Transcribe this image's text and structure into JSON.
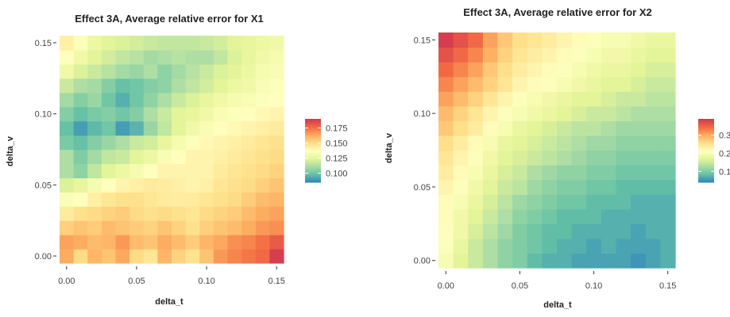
{
  "chart_data": [
    {
      "type": "heatmap",
      "title": "Effect 3A, Average relative error for X1",
      "xlabel": "delta_t",
      "ylabel": "delta_v",
      "x_ticks": [
        "0.00",
        "0.05",
        "0.10",
        "0.15"
      ],
      "y_ticks": [
        "0.00",
        "0.05",
        "0.10",
        "0.15"
      ],
      "x_values": [
        0,
        0.01,
        0.02,
        0.03,
        0.04,
        0.05,
        0.06,
        0.07,
        0.08,
        0.09,
        0.1,
        0.11,
        0.12,
        0.13,
        0.14,
        0.15
      ],
      "y_values": [
        0,
        0.01,
        0.02,
        0.03,
        0.04,
        0.05,
        0.06,
        0.07,
        0.08,
        0.09,
        0.1,
        0.11,
        0.12,
        0.13,
        0.14,
        0.15
      ],
      "legend_ticks": [
        "0.100",
        "0.125",
        "0.150",
        "0.175"
      ],
      "color_range": [
        0.085,
        0.19
      ],
      "colorscale": "Spectral (reversed): blue = low, red = high",
      "legend_position": "right",
      "z": [
        [
          0.164,
          0.152,
          0.162,
          0.158,
          0.165,
          0.152,
          0.148,
          0.162,
          0.154,
          0.149,
          0.158,
          0.168,
          0.172,
          0.175,
          0.178,
          0.19
        ],
        [
          0.166,
          0.164,
          0.16,
          0.162,
          0.168,
          0.16,
          0.158,
          0.164,
          0.16,
          0.156,
          0.162,
          0.165,
          0.17,
          0.172,
          0.176,
          0.182
        ],
        [
          0.155,
          0.158,
          0.156,
          0.16,
          0.158,
          0.156,
          0.154,
          0.158,
          0.154,
          0.15,
          0.155,
          0.158,
          0.16,
          0.164,
          0.168,
          0.17
        ],
        [
          0.146,
          0.15,
          0.152,
          0.154,
          0.156,
          0.152,
          0.15,
          0.152,
          0.15,
          0.148,
          0.152,
          0.154,
          0.156,
          0.16,
          0.164,
          0.166
        ],
        [
          0.135,
          0.138,
          0.144,
          0.148,
          0.15,
          0.15,
          0.148,
          0.146,
          0.145,
          0.146,
          0.148,
          0.15,
          0.152,
          0.156,
          0.16,
          0.162
        ],
        [
          0.122,
          0.126,
          0.132,
          0.138,
          0.142,
          0.144,
          0.146,
          0.145,
          0.144,
          0.142,
          0.144,
          0.148,
          0.15,
          0.152,
          0.155,
          0.158
        ],
        [
          0.112,
          0.106,
          0.116,
          0.124,
          0.128,
          0.132,
          0.138,
          0.142,
          0.142,
          0.142,
          0.142,
          0.146,
          0.148,
          0.15,
          0.152,
          0.154
        ],
        [
          0.112,
          0.103,
          0.11,
          0.116,
          0.118,
          0.124,
          0.128,
          0.134,
          0.138,
          0.142,
          0.142,
          0.144,
          0.146,
          0.148,
          0.15,
          0.152
        ],
        [
          0.102,
          0.098,
          0.104,
          0.108,
          0.112,
          0.118,
          0.12,
          0.126,
          0.132,
          0.136,
          0.14,
          0.142,
          0.144,
          0.146,
          0.148,
          0.15
        ],
        [
          0.098,
          0.09,
          0.096,
          0.1,
          0.09,
          0.095,
          0.108,
          0.116,
          0.124,
          0.13,
          0.134,
          0.138,
          0.14,
          0.142,
          0.144,
          0.146
        ],
        [
          0.104,
          0.098,
          0.102,
          0.104,
          0.1,
          0.104,
          0.112,
          0.118,
          0.124,
          0.126,
          0.13,
          0.134,
          0.136,
          0.138,
          0.14,
          0.142
        ],
        [
          0.11,
          0.104,
          0.108,
          0.1,
          0.094,
          0.1,
          0.106,
          0.112,
          0.118,
          0.122,
          0.126,
          0.13,
          0.132,
          0.134,
          0.136,
          0.138
        ],
        [
          0.118,
          0.112,
          0.11,
          0.104,
          0.098,
          0.1,
          0.104,
          0.106,
          0.112,
          0.116,
          0.12,
          0.124,
          0.128,
          0.13,
          0.134,
          0.136
        ],
        [
          0.13,
          0.122,
          0.118,
          0.114,
          0.11,
          0.108,
          0.112,
          0.106,
          0.11,
          0.114,
          0.118,
          0.122,
          0.124,
          0.128,
          0.132,
          0.134
        ],
        [
          0.138,
          0.13,
          0.124,
          0.12,
          0.116,
          0.114,
          0.11,
          0.112,
          0.114,
          0.112,
          0.112,
          0.116,
          0.122,
          0.126,
          0.13,
          0.132
        ],
        [
          0.144,
          0.136,
          0.128,
          0.124,
          0.122,
          0.12,
          0.118,
          0.116,
          0.116,
          0.116,
          0.118,
          0.12,
          0.124,
          0.126,
          0.128,
          0.13
        ]
      ]
    },
    {
      "type": "heatmap",
      "title": "Effect 3A, Average relative error for X2",
      "xlabel": "delta_t",
      "ylabel": "delta_v",
      "x_ticks": [
        "0.00",
        "0.05",
        "0.10",
        "0.15"
      ],
      "y_ticks": [
        "0.00",
        "0.05",
        "0.10",
        "0.15"
      ],
      "x_values": [
        0,
        0.01,
        0.02,
        0.03,
        0.04,
        0.05,
        0.06,
        0.07,
        0.08,
        0.09,
        0.1,
        0.11,
        0.12,
        0.13,
        0.14,
        0.15
      ],
      "y_values": [
        0,
        0.01,
        0.02,
        0.03,
        0.04,
        0.05,
        0.06,
        0.07,
        0.08,
        0.09,
        0.1,
        0.11,
        0.12,
        0.13,
        0.14,
        0.15
      ],
      "legend_ticks": [
        "0.1",
        "0.2",
        "0.3"
      ],
      "color_range": [
        0.04,
        0.39
      ],
      "colorscale": "Spectral (reversed): blue = low, red = high",
      "legend_position": "right",
      "z": [
        [
          0.2,
          0.17,
          0.15,
          0.13,
          0.11,
          0.1,
          0.08,
          0.07,
          0.07,
          0.06,
          0.06,
          0.06,
          0.06,
          0.05,
          0.06,
          0.07
        ],
        [
          0.21,
          0.18,
          0.15,
          0.13,
          0.11,
          0.1,
          0.09,
          0.08,
          0.07,
          0.07,
          0.06,
          0.07,
          0.06,
          0.06,
          0.06,
          0.07
        ],
        [
          0.21,
          0.19,
          0.16,
          0.14,
          0.12,
          0.1,
          0.09,
          0.08,
          0.08,
          0.07,
          0.07,
          0.07,
          0.07,
          0.06,
          0.07,
          0.07
        ],
        [
          0.22,
          0.19,
          0.17,
          0.15,
          0.13,
          0.11,
          0.1,
          0.09,
          0.08,
          0.08,
          0.08,
          0.07,
          0.07,
          0.07,
          0.07,
          0.07
        ],
        [
          0.22,
          0.2,
          0.18,
          0.16,
          0.14,
          0.12,
          0.11,
          0.1,
          0.09,
          0.09,
          0.08,
          0.08,
          0.08,
          0.07,
          0.07,
          0.07
        ],
        [
          0.23,
          0.21,
          0.19,
          0.17,
          0.15,
          0.14,
          0.12,
          0.11,
          0.1,
          0.1,
          0.09,
          0.09,
          0.08,
          0.08,
          0.08,
          0.08
        ],
        [
          0.24,
          0.22,
          0.2,
          0.18,
          0.16,
          0.15,
          0.13,
          0.12,
          0.11,
          0.11,
          0.1,
          0.1,
          0.09,
          0.09,
          0.09,
          0.09
        ],
        [
          0.25,
          0.23,
          0.21,
          0.19,
          0.17,
          0.16,
          0.15,
          0.14,
          0.13,
          0.12,
          0.11,
          0.11,
          0.1,
          0.1,
          0.1,
          0.1
        ],
        [
          0.26,
          0.24,
          0.22,
          0.2,
          0.18,
          0.17,
          0.16,
          0.15,
          0.14,
          0.13,
          0.12,
          0.12,
          0.11,
          0.11,
          0.11,
          0.11
        ],
        [
          0.28,
          0.26,
          0.24,
          0.22,
          0.2,
          0.18,
          0.17,
          0.16,
          0.15,
          0.14,
          0.14,
          0.13,
          0.12,
          0.12,
          0.12,
          0.12
        ],
        [
          0.29,
          0.27,
          0.25,
          0.23,
          0.21,
          0.2,
          0.19,
          0.18,
          0.17,
          0.16,
          0.15,
          0.15,
          0.14,
          0.13,
          0.13,
          0.13
        ],
        [
          0.31,
          0.29,
          0.27,
          0.25,
          0.23,
          0.21,
          0.2,
          0.19,
          0.18,
          0.17,
          0.17,
          0.16,
          0.15,
          0.15,
          0.14,
          0.14
        ],
        [
          0.33,
          0.31,
          0.29,
          0.27,
          0.25,
          0.23,
          0.22,
          0.21,
          0.2,
          0.19,
          0.18,
          0.17,
          0.17,
          0.16,
          0.15,
          0.15
        ],
        [
          0.35,
          0.33,
          0.31,
          0.28,
          0.26,
          0.24,
          0.23,
          0.22,
          0.21,
          0.2,
          0.19,
          0.18,
          0.18,
          0.17,
          0.16,
          0.16
        ],
        [
          0.37,
          0.35,
          0.33,
          0.3,
          0.27,
          0.25,
          0.24,
          0.23,
          0.22,
          0.21,
          0.2,
          0.19,
          0.19,
          0.18,
          0.17,
          0.17
        ],
        [
          0.39,
          0.37,
          0.35,
          0.31,
          0.28,
          0.26,
          0.25,
          0.24,
          0.23,
          0.22,
          0.21,
          0.2,
          0.2,
          0.19,
          0.18,
          0.18
        ]
      ]
    }
  ]
}
